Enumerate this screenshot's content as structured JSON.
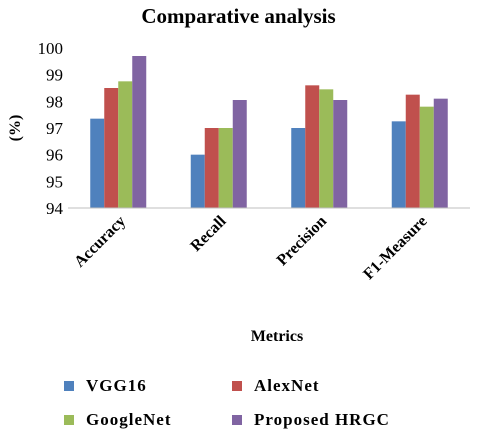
{
  "chart_data": {
    "type": "bar",
    "title": "Comparative  analysis",
    "xlabel": "Metrics",
    "ylabel": "(%)",
    "ylim": [
      94,
      100
    ],
    "yticks": [
      94,
      95,
      96,
      97,
      98,
      99,
      100
    ],
    "grid": false,
    "legend_position": "bottom",
    "categories": [
      "Accuracy",
      "Recall",
      "Precision",
      "F1-Measure"
    ],
    "series": [
      {
        "name": "VGG16",
        "color": "#4f81bd",
        "values": [
          97.35,
          96.0,
          97.0,
          97.25
        ]
      },
      {
        "name": "AlexNet",
        "color": "#c0504d",
        "values": [
          98.5,
          97.0,
          98.6,
          98.25
        ]
      },
      {
        "name": "GoogleNet",
        "color": "#9bbb59",
        "values": [
          98.75,
          97.0,
          98.45,
          97.8
        ]
      },
      {
        "name": "Proposed HRGC",
        "color": "#8064a2",
        "values": [
          99.7,
          98.05,
          98.05,
          98.1
        ]
      }
    ]
  }
}
